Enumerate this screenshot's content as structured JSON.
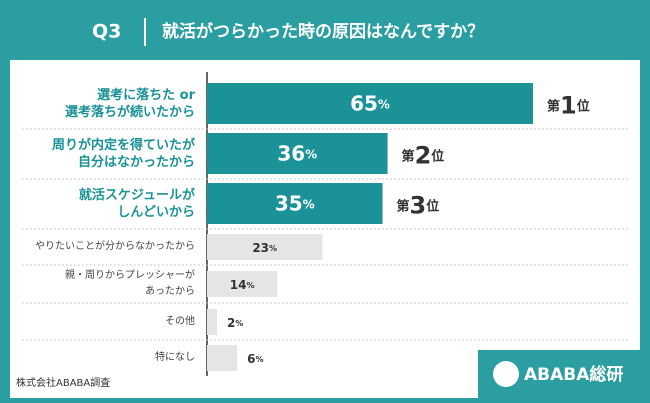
{
  "header": {
    "question": "Q3",
    "title": "就活がつらかった時の原因はなんですか？"
  },
  "chart_data": {
    "type": "bar",
    "categories": [
      "選考に落ちた or\n選考落ちが続いたから",
      "周りが内定を得ていたが\n自分はなかったから",
      "就活スケジュールが\nしんどいから",
      "やりたいことが分からなかったから",
      "親・周りからプレッシャーが\nあったから",
      "その他",
      "特になし"
    ],
    "values": [
      65,
      36,
      35,
      23,
      14,
      2,
      6
    ],
    "value_labels": [
      "65%",
      "36%",
      "35%",
      "23%",
      "14%",
      "2%",
      "6%"
    ],
    "colors": [
      "#1a9297",
      "#1a9297",
      "#1a9297",
      "#e5e5e5",
      "#e5e5e5",
      "#e5e5e5",
      "#e5e5e5"
    ],
    "ranks": [
      "第1位",
      "第2位",
      "第3位"
    ],
    "xlim": [
      0,
      65
    ]
  },
  "footer": {
    "source": "株式会社ABABA調査",
    "logo": "ABABA総研"
  }
}
